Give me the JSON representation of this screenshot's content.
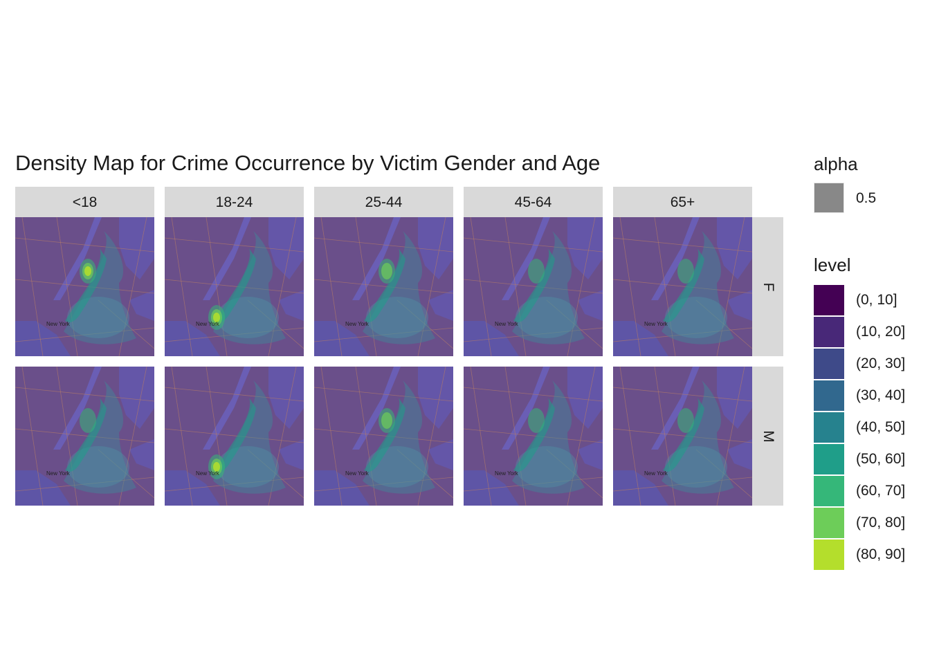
{
  "title": "Density Map for Crime Occurrence by Victim Gender and Age",
  "facets": {
    "columns": [
      "<18",
      "18-24",
      "25-44",
      "45-64",
      "65+"
    ],
    "rows": [
      "F",
      "M"
    ]
  },
  "map_labels": {
    "city": "New York"
  },
  "legend": {
    "alpha": {
      "title": "alpha",
      "value": "0.5",
      "color": "#888888"
    },
    "level": {
      "title": "level",
      "items": [
        {
          "label": "(0, 10]",
          "color": "#440154"
        },
        {
          "label": "(10, 20]",
          "color": "#482878"
        },
        {
          "label": "(20, 30]",
          "color": "#3E4A89"
        },
        {
          "label": "(30, 40]",
          "color": "#31688E"
        },
        {
          "label": "(40, 50]",
          "color": "#26828E"
        },
        {
          "label": "(50, 60]",
          "color": "#1F9E89"
        },
        {
          "label": "(60, 70]",
          "color": "#35B779"
        },
        {
          "label": "(70, 80]",
          "color": "#6DCD59"
        },
        {
          "label": "(80, 90]",
          "color": "#B4DE2C"
        }
      ]
    }
  },
  "density_peak_level": {
    "F": {
      "<18": "(80, 90]",
      "18-24": "(80, 90]",
      "25-44": "(70, 80]",
      "45-64": "(60, 70]",
      "65+": "(60, 70]"
    },
    "M": {
      "<18": "(60, 70]",
      "18-24": "(80, 90]",
      "25-44": "(70, 80]",
      "45-64": "(60, 70]",
      "65+": "(50, 60]"
    }
  }
}
